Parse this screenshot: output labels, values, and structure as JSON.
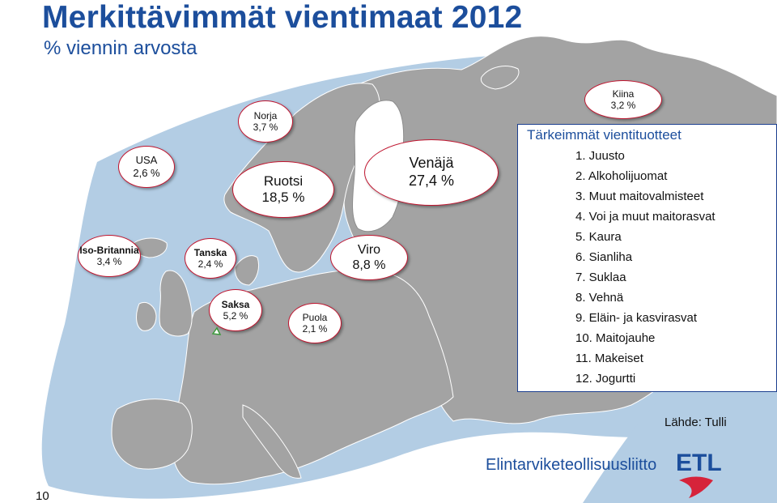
{
  "slide": {
    "title": "Merkittävimmät vientimaat 2012",
    "subtitle": "% viennin arvosta",
    "page_number": "10",
    "source": "Lähde: Tulli",
    "brand_text": "Elintarviketeollisuusliitto",
    "logo_text": "ETL"
  },
  "countries": [
    {
      "name": "Kiina",
      "value": "3,2 %"
    },
    {
      "name": "Norja",
      "value": "3,7 %"
    },
    {
      "name": "USA",
      "value": "2,6 %"
    },
    {
      "name": "Ruotsi",
      "value": "18,5 %"
    },
    {
      "name": "Venäjä",
      "value": "27,4 %"
    },
    {
      "name": "Iso-Britannia",
      "value": "3,4 %"
    },
    {
      "name": "Tanska",
      "value": "2,4 %"
    },
    {
      "name": "Viro",
      "value": "8,8 %"
    },
    {
      "name": "Saksa",
      "value": "5,2 %"
    },
    {
      "name": "Puola",
      "value": "2,1 %"
    }
  ],
  "products": {
    "title": "Tärkeimmät vientituotteet",
    "items": [
      "1. Juusto",
      "2. Alkoholijuomat",
      "3. Muut maitovalmisteet",
      "4. Voi ja muut maitorasvat",
      "5. Kaura",
      "6. Sianliha",
      "7. Suklaa",
      "8. Vehnä",
      "9. Eläin- ja kasvirasvat",
      "10. Maitojauhe",
      "11. Makeiset",
      "12. Jogurtti"
    ]
  },
  "colors": {
    "title": "#1c4e9c",
    "sea": "#b3cde4",
    "land": "#a3a3a3",
    "finland": "#ffffff",
    "bubble_border": "#c0152f",
    "logo_red": "#d6233a"
  },
  "icons": {
    "map": "europe-map-graphic",
    "logo": "etl-logo"
  }
}
